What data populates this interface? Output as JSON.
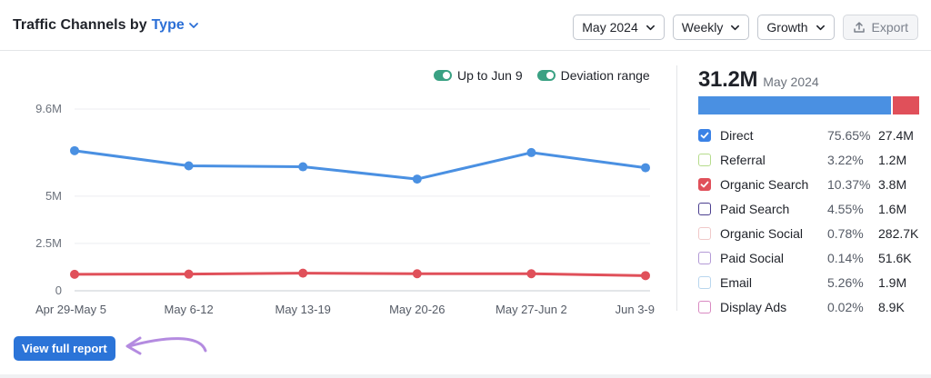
{
  "header": {
    "title_prefix": "Traffic Channels by",
    "title_type": "Type",
    "dropdowns": [
      {
        "label": "May 2024"
      },
      {
        "label": "Weekly"
      },
      {
        "label": "Growth"
      }
    ],
    "export_label": "Export"
  },
  "legend": {
    "up_to": "Up to Jun 9",
    "deviation": "Deviation range"
  },
  "summary": {
    "total": "31.2M",
    "period": "May 2024",
    "bar_shares": {
      "direct": 75.65,
      "organic_search": 10.37
    }
  },
  "channels": [
    {
      "name": "Direct",
      "pct": "75.65%",
      "value": "27.4M",
      "color": "#3b82e6",
      "checked": true
    },
    {
      "name": "Referral",
      "pct": "3.22%",
      "value": "1.2M",
      "color": "#b6dc8c",
      "checked": false
    },
    {
      "name": "Organic Search",
      "pct": "10.37%",
      "value": "3.8M",
      "color": "#e0505a",
      "checked": true
    },
    {
      "name": "Paid Search",
      "pct": "4.55%",
      "value": "1.6M",
      "color": "#4b3f8f",
      "checked": false
    },
    {
      "name": "Organic Social",
      "pct": "0.78%",
      "value": "282.7K",
      "color": "#f0c9c9",
      "checked": false
    },
    {
      "name": "Paid Social",
      "pct": "0.14%",
      "value": "51.6K",
      "color": "#b39ad6",
      "checked": false
    },
    {
      "name": "Email",
      "pct": "5.26%",
      "value": "1.9M",
      "color": "#b9d6ee",
      "checked": false
    },
    {
      "name": "Display Ads",
      "pct": "0.02%",
      "value": "8.9K",
      "color": "#d98ac2",
      "checked": false
    }
  ],
  "chart_data": {
    "type": "line",
    "categories": [
      "Apr 29-May 5",
      "May 6-12",
      "May 13-19",
      "May 20-26",
      "May 27-Jun 2",
      "Jun 3-9"
    ],
    "series": [
      {
        "name": "Direct",
        "color": "#4a90e2",
        "values": [
          7.4,
          6.6,
          6.55,
          5.9,
          7.3,
          6.5
        ]
      },
      {
        "name": "Organic Search",
        "color": "#e0505a",
        "values": [
          0.87,
          0.88,
          0.93,
          0.9,
          0.9,
          0.8
        ]
      }
    ],
    "yticks": [
      {
        "value": 0,
        "label": "0"
      },
      {
        "value": 2.5,
        "label": "2.5M"
      },
      {
        "value": 5,
        "label": "5M"
      },
      {
        "value": 9.6,
        "label": "9.6M"
      }
    ],
    "ylim": [
      0,
      9.6
    ],
    "grid": true
  },
  "actions": {
    "view_report": "View full report"
  },
  "colors": {
    "accent": "#2b74d8",
    "legend_toggle": "#3aa183",
    "annotation_arrow": "#b48be0"
  }
}
